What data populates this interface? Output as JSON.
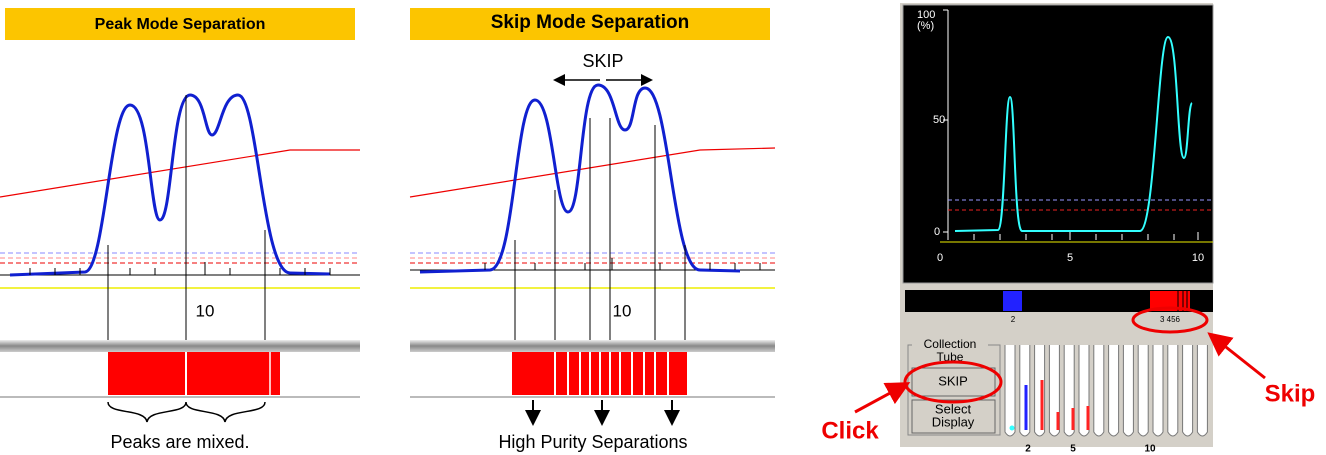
{
  "panels": [
    {
      "title": "Peak Mode Separation",
      "axis_label": "10",
      "caption": "Peaks are mixed."
    },
    {
      "title": "Skip Mode Separation",
      "arrow_label": "SKIP",
      "axis_label": "10",
      "caption": "High Purity Separations"
    }
  ],
  "screenshot": {
    "y_labels": [
      "100",
      "(%)",
      "50",
      "0"
    ],
    "x_labels": [
      "0",
      "5",
      "10"
    ],
    "strip_labels": [
      "2",
      "3 456"
    ],
    "group": {
      "title": "Collection",
      "sub": "Tube",
      "skip_button": "SKIP",
      "select_button": [
        "Select",
        "Display"
      ]
    },
    "tube_labels": [
      "2",
      "5",
      "10"
    ]
  },
  "callouts": {
    "click": "Click",
    "skip": "Skip"
  }
}
